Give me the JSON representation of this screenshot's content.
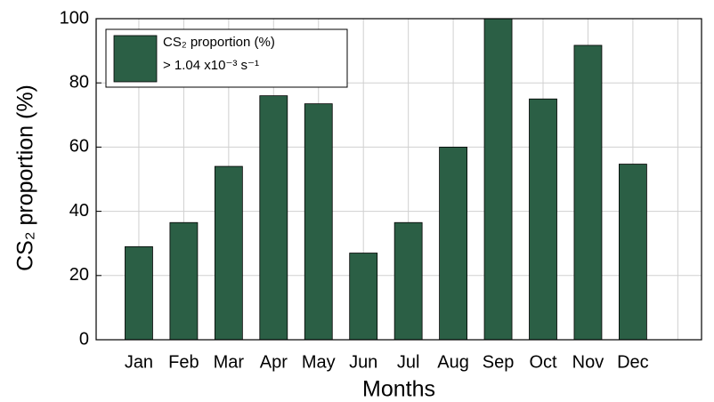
{
  "chart_data": {
    "type": "bar",
    "x_label": "Months",
    "y_label": "CS₂ proportion (%)",
    "categories": [
      "Jan",
      "Feb",
      "Mar",
      "Apr",
      "May",
      "Jun",
      "Jul",
      "Aug",
      "Sep",
      "Oct",
      "Nov",
      "Dec"
    ],
    "series": [
      {
        "name": "CS₂ proportion (%)\n> 1.04 x10⁻³ s⁻¹",
        "color": "#2b5f45",
        "values": [
          29,
          36.5,
          54,
          76,
          73.5,
          27,
          36.5,
          60,
          100,
          75,
          91.7,
          54.7
        ]
      }
    ],
    "ylim": [
      0,
      100
    ],
    "yticks": [
      0,
      20,
      40,
      60,
      80,
      100
    ],
    "grid": true,
    "legend": "upper left"
  }
}
